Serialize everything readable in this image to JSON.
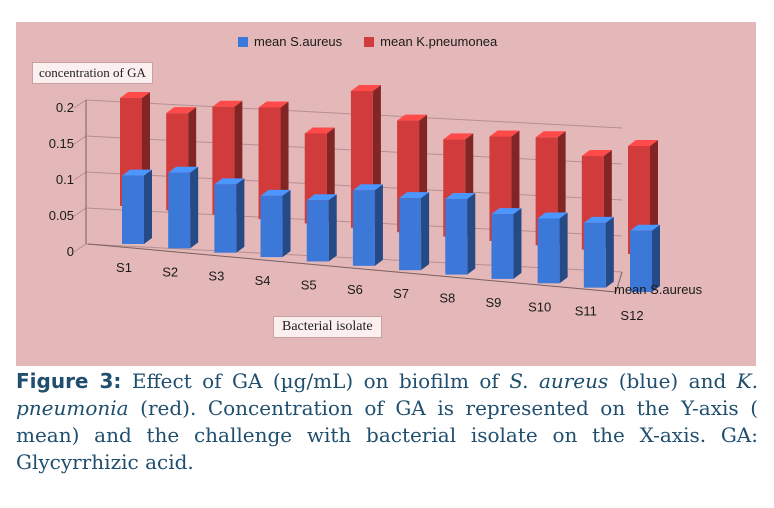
{
  "chart_data": {
    "type": "bar",
    "categories": [
      "S1",
      "S2",
      "S3",
      "S4",
      "S5",
      "S6",
      "S7",
      "S8",
      "S9",
      "S10",
      "S11",
      "S12"
    ],
    "series": [
      {
        "name": "mean S.aureus",
        "values": [
          0.095,
          0.105,
          0.095,
          0.085,
          0.085,
          0.105,
          0.1,
          0.105,
          0.09,
          0.09,
          0.09,
          0.085
        ],
        "color": "#3c78d8"
      },
      {
        "name": "mean K.pneumonea",
        "values": [
          0.15,
          0.135,
          0.15,
          0.155,
          0.125,
          0.19,
          0.155,
          0.135,
          0.145,
          0.15,
          0.13,
          0.15
        ],
        "color": "#d23b3b"
      }
    ],
    "ylabel": "concentration of GA",
    "xlabel": "Bacterial isolate",
    "depth_axis_label": "mean S.aureus",
    "ylim": [
      0,
      0.2
    ],
    "yticks": [
      "0",
      "0.05",
      "0.1",
      "0.15",
      "0.2"
    ],
    "legend_position": "top-center",
    "grid": true
  },
  "caption": {
    "label": "Figure 3:",
    "t1": " Effect of GA (µg/mL) on biofilm of ",
    "saureus": "S. aureus",
    "t2": " (blue) and ",
    "kpneu": "K. pneumonia",
    "t3": " (red).  Concentration of GA is represented on the Y-axis ( mean) and the challenge with bacterial isolate on the X-axis. GA: Glycyrrhizic acid."
  }
}
